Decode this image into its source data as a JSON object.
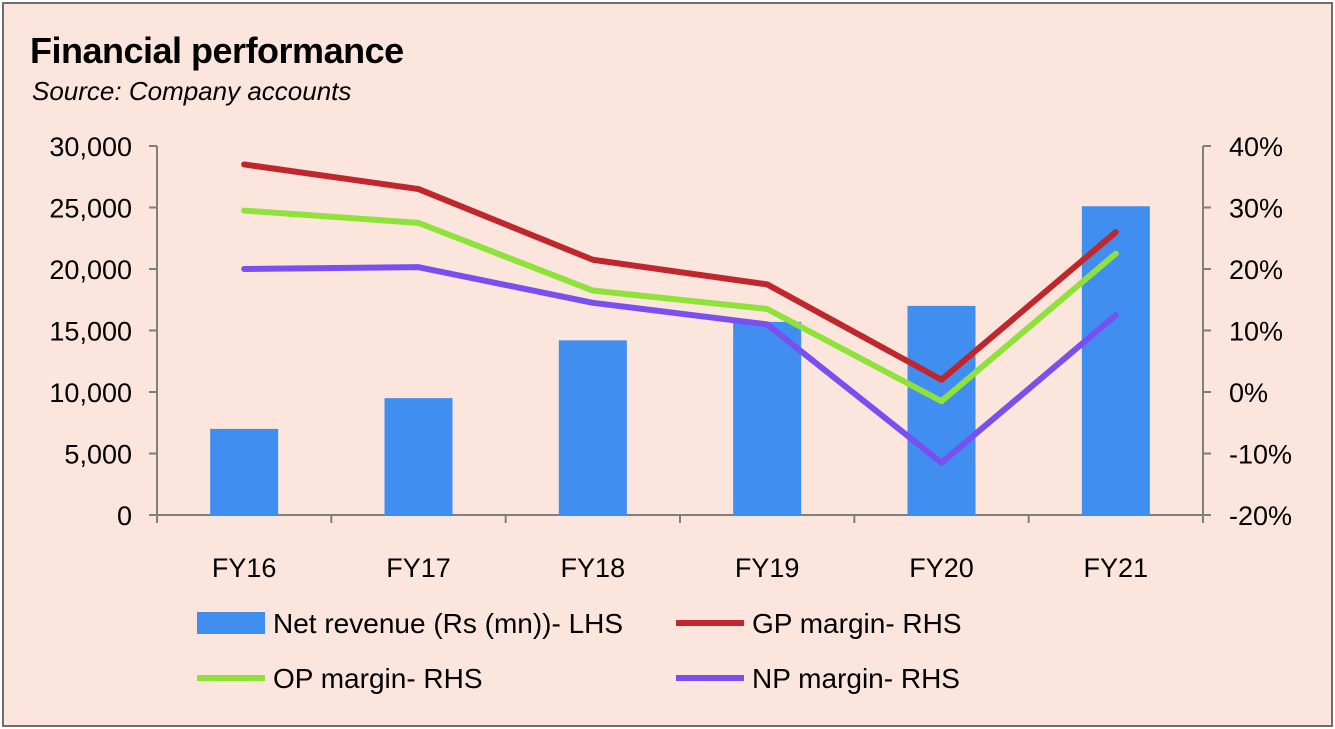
{
  "title": "Financial performance",
  "subtitle": "Source: Company accounts",
  "colors": {
    "background": "#fbe5dc",
    "bar": "#3f8ef0",
    "gp": "#c0272d",
    "op": "#8ee23a",
    "np": "#7a4ff0",
    "axis": "#7f7f7f"
  },
  "chart_data": {
    "type": "bar",
    "categories": [
      "FY16",
      "FY17",
      "FY18",
      "FY19",
      "FY20",
      "FY21"
    ],
    "y_left": {
      "ylim": [
        0,
        30000
      ],
      "ticks": [
        "0",
        "5,000",
        "10,000",
        "15,000",
        "20,000",
        "25,000",
        "30,000"
      ]
    },
    "y_right": {
      "ylim": [
        -20,
        40
      ],
      "ticks": [
        "-20%",
        "-10%",
        "0%",
        "10%",
        "20%",
        "30%",
        "40%"
      ]
    },
    "series": [
      {
        "name": "Net revenue (Rs (mn))- LHS",
        "type": "bar",
        "axis": "left",
        "color": "#3f8ef0",
        "values": [
          7000,
          9500,
          14200,
          15700,
          17000,
          25100
        ]
      },
      {
        "name": "GP margin- RHS",
        "type": "line",
        "axis": "right",
        "color": "#c0272d",
        "values": [
          37,
          33,
          21.5,
          17.5,
          2,
          26
        ]
      },
      {
        "name": "OP margin- RHS",
        "type": "line",
        "axis": "right",
        "color": "#8ee23a",
        "values": [
          29.5,
          27.5,
          16.5,
          13.5,
          -1.5,
          22.5
        ]
      },
      {
        "name": "NP margin- RHS",
        "type": "line",
        "axis": "right",
        "color": "#7a4ff0",
        "values": [
          20,
          20.3,
          14.5,
          11,
          -11.5,
          12.5
        ]
      }
    ],
    "legend_position": "bottom",
    "grid": false
  }
}
